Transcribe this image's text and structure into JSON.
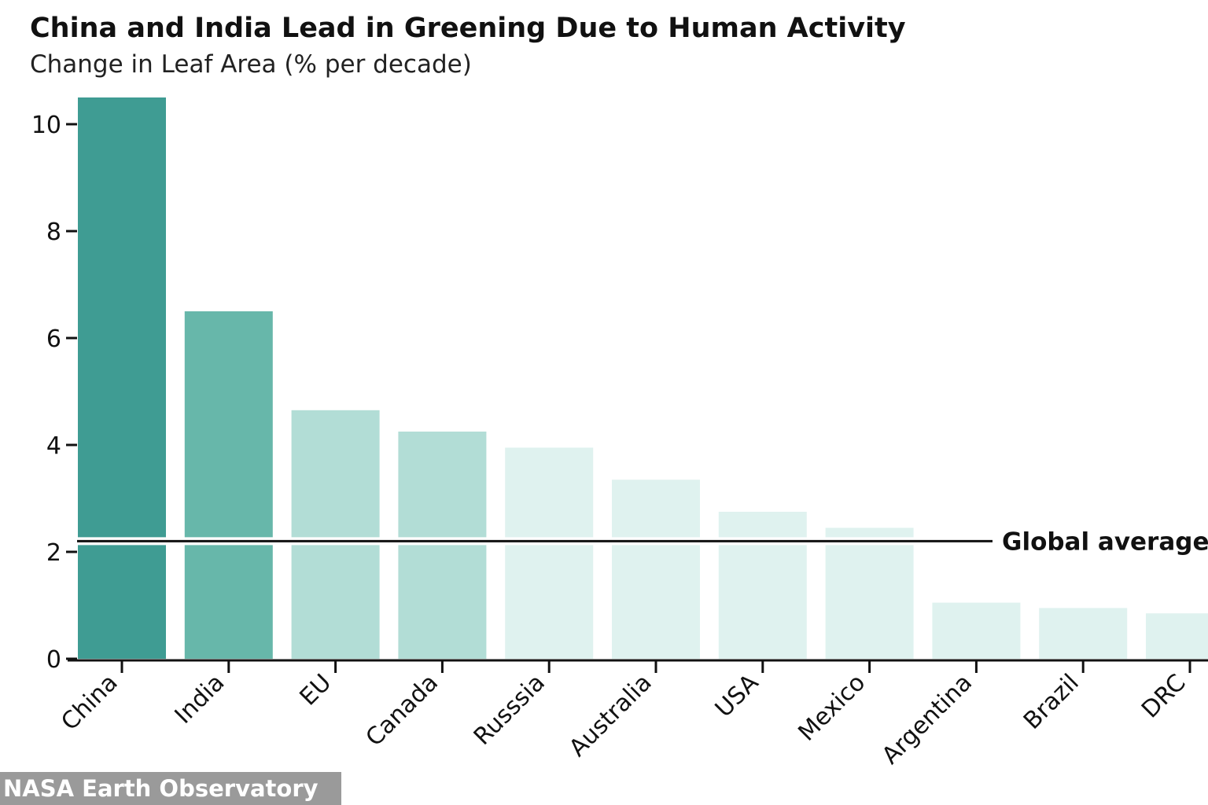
{
  "chart_data": {
    "type": "bar",
    "title": "China and India Lead in Greening Due to Human Activity",
    "subtitle": "Change in Leaf Area (% per decade)",
    "xlabel": "",
    "ylabel": "",
    "categories": [
      "China",
      "India",
      "EU",
      "Canada",
      "Russsia",
      "Australia",
      "USA",
      "Mexico",
      "Argentina",
      "Brazil",
      "DRC"
    ],
    "values": [
      10.5,
      6.5,
      4.65,
      4.25,
      3.95,
      3.35,
      2.75,
      2.45,
      1.05,
      0.95,
      0.85
    ],
    "bar_colors": [
      "#3f9c93",
      "#67b7aa",
      "#b2ddd6",
      "#b2ddd6",
      "#dff2ef",
      "#dff2ef",
      "#dff2ef",
      "#dff2ef",
      "#dff2ef",
      "#dff2ef",
      "#dff2ef"
    ],
    "yticks": [
      0,
      2,
      4,
      6,
      8,
      10
    ],
    "ylim": [
      0,
      10.5
    ],
    "reference_line": {
      "value": 2.2,
      "label": "Global average:"
    },
    "grid": false,
    "legend": "none"
  },
  "credit": "NASA Earth Observatory"
}
